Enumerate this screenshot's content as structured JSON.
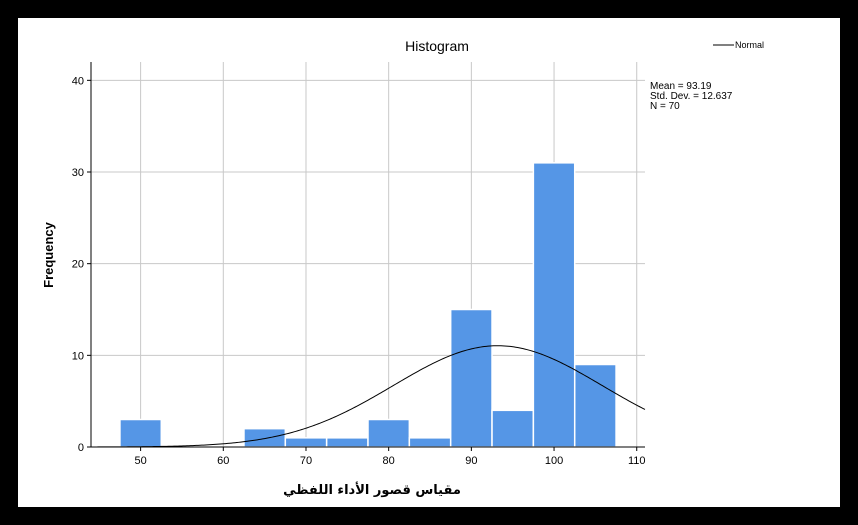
{
  "chart_data": {
    "type": "bar",
    "title": "Histogram",
    "xlabel": "مقياس قصور الأداء اللفظي",
    "ylabel": "Frequency",
    "xlim": [
      44,
      111
    ],
    "ylim": [
      0,
      42
    ],
    "xticks": [
      50,
      60,
      70,
      80,
      90,
      100,
      110
    ],
    "yticks": [
      0,
      10,
      20,
      30,
      40
    ],
    "bin_width": 5,
    "bins": [
      {
        "start": 47.5,
        "end": 52.5,
        "count": 3
      },
      {
        "start": 52.5,
        "end": 57.5,
        "count": 0
      },
      {
        "start": 57.5,
        "end": 62.5,
        "count": 0
      },
      {
        "start": 62.5,
        "end": 67.5,
        "count": 2
      },
      {
        "start": 67.5,
        "end": 72.5,
        "count": 1
      },
      {
        "start": 72.5,
        "end": 77.5,
        "count": 1
      },
      {
        "start": 77.5,
        "end": 82.5,
        "count": 3
      },
      {
        "start": 82.5,
        "end": 87.5,
        "count": 1
      },
      {
        "start": 87.5,
        "end": 92.5,
        "count": 15
      },
      {
        "start": 92.5,
        "end": 97.5,
        "count": 4
      },
      {
        "start": 97.5,
        "end": 102.5,
        "count": 31
      },
      {
        "start": 102.5,
        "end": 107.5,
        "count": 9
      }
    ],
    "normal_curve": {
      "mean": 93.19,
      "sd": 12.637,
      "n": 70
    },
    "legend": {
      "label": "Normal",
      "placement": "top-right"
    },
    "stats": {
      "mean": "Mean = 93.19",
      "sd": "Std. Dev. = 12.637",
      "n": "N = 70"
    },
    "grid": true,
    "colors": {
      "bar": "#5596e6",
      "bar_edge": "#ffffff",
      "curve": "#000000",
      "grid": "#c8c8c8"
    }
  }
}
